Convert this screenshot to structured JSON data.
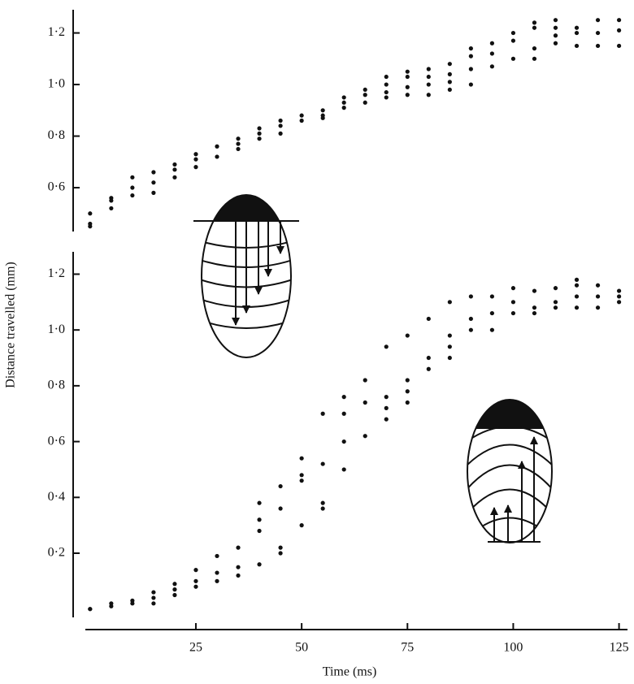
{
  "chart_data": [
    {
      "type": "scatter",
      "ylabel": "Distance travelled (mm)",
      "color": "#111111",
      "xlim": [
        -4,
        127
      ],
      "ylim": [
        0.43,
        1.29
      ],
      "yticks": [
        {
          "value": 0.6,
          "label": "0·6"
        },
        {
          "value": 0.8,
          "label": "0·8"
        },
        {
          "value": 1.0,
          "label": "1·0"
        },
        {
          "value": 1.2,
          "label": "1·2"
        }
      ],
      "x": [
        0,
        0,
        0,
        5,
        5,
        5,
        10,
        10,
        10,
        15,
        15,
        15,
        20,
        20,
        20,
        25,
        25,
        25,
        30,
        30,
        35,
        35,
        35,
        40,
        40,
        40,
        45,
        45,
        45,
        50,
        50,
        55,
        55,
        55,
        60,
        60,
        60,
        65,
        65,
        65,
        70,
        70,
        70,
        70,
        75,
        75,
        75,
        75,
        80,
        80,
        80,
        80,
        85,
        85,
        85,
        85,
        90,
        90,
        90,
        90,
        95,
        95,
        95,
        100,
        100,
        100,
        105,
        105,
        105,
        105,
        110,
        110,
        110,
        110,
        115,
        115,
        115,
        120,
        120,
        120,
        125,
        125,
        125
      ],
      "values": [
        0.5,
        0.46,
        0.45,
        0.56,
        0.55,
        0.52,
        0.64,
        0.6,
        0.57,
        0.66,
        0.62,
        0.58,
        0.69,
        0.67,
        0.64,
        0.73,
        0.71,
        0.68,
        0.76,
        0.72,
        0.79,
        0.77,
        0.75,
        0.83,
        0.81,
        0.79,
        0.86,
        0.84,
        0.81,
        0.88,
        0.86,
        0.9,
        0.88,
        0.87,
        0.95,
        0.93,
        0.91,
        0.98,
        0.96,
        0.93,
        1.03,
        1.0,
        0.97,
        0.95,
        1.05,
        1.03,
        0.99,
        0.96,
        1.06,
        1.03,
        1.0,
        0.96,
        1.08,
        1.04,
        1.01,
        0.98,
        1.14,
        1.11,
        1.06,
        1.0,
        1.16,
        1.12,
        1.07,
        1.2,
        1.17,
        1.1,
        1.24,
        1.22,
        1.14,
        1.1,
        1.25,
        1.22,
        1.19,
        1.16,
        1.22,
        1.2,
        1.15,
        1.25,
        1.2,
        1.15,
        1.25,
        1.21,
        1.15
      ]
    },
    {
      "type": "scatter",
      "xlabel": "Time (ms)",
      "color": "#111111",
      "xlim": [
        -4,
        127
      ],
      "ylim": [
        -0.03,
        1.28
      ],
      "xticks": [
        25,
        50,
        75,
        100,
        125
      ],
      "yticks": [
        {
          "value": 0.2,
          "label": "0·2"
        },
        {
          "value": 0.4,
          "label": "0·4"
        },
        {
          "value": 0.6,
          "label": "0·6"
        },
        {
          "value": 0.8,
          "label": "0·8"
        },
        {
          "value": 1.0,
          "label": "1·0"
        },
        {
          "value": 1.2,
          "label": "1·2"
        }
      ],
      "x": [
        0,
        0,
        5,
        5,
        10,
        10,
        15,
        15,
        15,
        20,
        20,
        20,
        25,
        25,
        25,
        30,
        30,
        30,
        35,
        35,
        35,
        40,
        40,
        40,
        40,
        45,
        45,
        45,
        45,
        50,
        50,
        50,
        50,
        55,
        55,
        55,
        55,
        60,
        60,
        60,
        60,
        65,
        65,
        65,
        70,
        70,
        70,
        70,
        75,
        75,
        75,
        75,
        80,
        80,
        80,
        85,
        85,
        85,
        85,
        90,
        90,
        90,
        95,
        95,
        95,
        100,
        100,
        100,
        105,
        105,
        105,
        110,
        110,
        110,
        115,
        115,
        115,
        115,
        120,
        120,
        120,
        125,
        125,
        125
      ],
      "values": [
        0,
        0,
        0.02,
        0.01,
        0.03,
        0.02,
        0.06,
        0.04,
        0.02,
        0.09,
        0.07,
        0.05,
        0.14,
        0.1,
        0.08,
        0.19,
        0.13,
        0.1,
        0.22,
        0.15,
        0.12,
        0.38,
        0.32,
        0.28,
        0.16,
        0.44,
        0.36,
        0.22,
        0.2,
        0.54,
        0.48,
        0.46,
        0.3,
        0.7,
        0.52,
        0.38,
        0.36,
        0.76,
        0.7,
        0.6,
        0.5,
        0.82,
        0.74,
        0.62,
        0.94,
        0.76,
        0.72,
        0.68,
        0.98,
        0.82,
        0.78,
        0.74,
        1.04,
        0.9,
        0.86,
        1.1,
        0.98,
        0.94,
        0.9,
        1.12,
        1.04,
        1.0,
        1.12,
        1.06,
        1.0,
        1.15,
        1.1,
        1.06,
        1.14,
        1.08,
        1.06,
        1.15,
        1.1,
        1.08,
        1.18,
        1.16,
        1.12,
        1.08,
        1.16,
        1.12,
        1.08,
        1.14,
        1.12,
        1.1
      ]
    }
  ]
}
